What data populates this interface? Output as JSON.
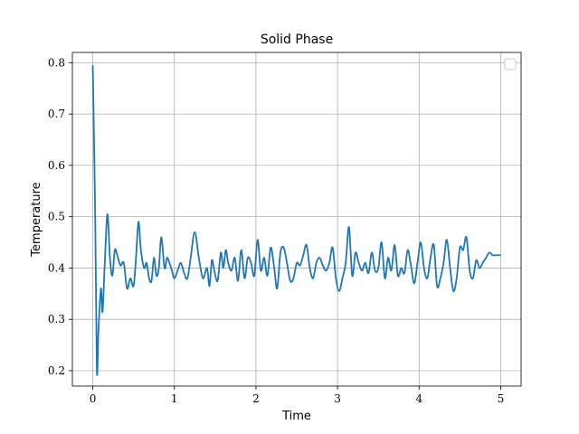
{
  "chart_data": {
    "type": "line",
    "title": "Solid Phase",
    "xlabel": "Time",
    "ylabel": "Temperature",
    "xlim": [
      -0.25,
      5.25
    ],
    "ylim": [
      0.17,
      0.82
    ],
    "xticks": [
      0,
      1,
      2,
      3,
      4,
      5
    ],
    "yticks": [
      0.2,
      0.3,
      0.4,
      0.5,
      0.6,
      0.7,
      0.8
    ],
    "grid": true,
    "legend": "top-right (empty)",
    "series": [
      {
        "name": "",
        "color": "#1f77b4",
        "x": [
          0.0,
          0.03,
          0.05,
          0.07,
          0.1,
          0.12,
          0.15,
          0.18,
          0.21,
          0.24,
          0.27,
          0.3,
          0.34,
          0.38,
          0.42,
          0.46,
          0.5,
          0.53,
          0.56,
          0.59,
          0.63,
          0.66,
          0.69,
          0.72,
          0.75,
          0.78,
          0.81,
          0.84,
          0.88,
          0.91,
          0.94,
          0.97,
          1.0,
          1.04,
          1.08,
          1.12,
          1.16,
          1.2,
          1.25,
          1.3,
          1.35,
          1.4,
          1.43,
          1.46,
          1.49,
          1.53,
          1.57,
          1.6,
          1.63,
          1.66,
          1.7,
          1.74,
          1.78,
          1.82,
          1.86,
          1.9,
          1.94,
          1.98,
          2.02,
          2.06,
          2.1,
          2.14,
          2.18,
          2.22,
          2.26,
          2.3,
          2.34,
          2.38,
          2.42,
          2.46,
          2.5,
          2.54,
          2.58,
          2.62,
          2.66,
          2.7,
          2.74,
          2.78,
          2.82,
          2.86,
          2.9,
          2.94,
          2.98,
          3.02,
          3.06,
          3.1,
          3.14,
          3.18,
          3.22,
          3.26,
          3.3,
          3.34,
          3.38,
          3.42,
          3.46,
          3.5,
          3.54,
          3.58,
          3.62,
          3.66,
          3.7,
          3.74,
          3.78,
          3.82,
          3.86,
          3.9,
          3.94,
          3.98,
          4.02,
          4.06,
          4.1,
          4.14,
          4.18,
          4.22,
          4.26,
          4.3,
          4.34,
          4.38,
          4.42,
          4.46,
          4.5,
          4.54,
          4.58,
          4.62,
          4.66,
          4.7,
          4.74,
          4.78,
          4.82,
          4.86,
          4.9,
          4.94,
          4.98,
          5.0
        ],
        "y": [
          0.795,
          0.5,
          0.2,
          0.28,
          0.36,
          0.315,
          0.42,
          0.505,
          0.42,
          0.385,
          0.435,
          0.425,
          0.405,
          0.41,
          0.36,
          0.38,
          0.365,
          0.42,
          0.49,
          0.435,
          0.4,
          0.41,
          0.38,
          0.375,
          0.42,
          0.385,
          0.4,
          0.46,
          0.4,
          0.42,
          0.41,
          0.395,
          0.38,
          0.395,
          0.41,
          0.39,
          0.38,
          0.42,
          0.47,
          0.42,
          0.38,
          0.4,
          0.365,
          0.415,
          0.395,
          0.375,
          0.43,
          0.4,
          0.435,
          0.41,
          0.395,
          0.42,
          0.375,
          0.435,
          0.38,
          0.42,
          0.41,
          0.385,
          0.455,
          0.395,
          0.42,
          0.385,
          0.44,
          0.405,
          0.36,
          0.43,
          0.44,
          0.41,
          0.375,
          0.38,
          0.41,
          0.405,
          0.425,
          0.445,
          0.4,
          0.38,
          0.41,
          0.42,
          0.405,
          0.395,
          0.41,
          0.44,
          0.38,
          0.355,
          0.38,
          0.41,
          0.48,
          0.385,
          0.43,
          0.41,
          0.395,
          0.41,
          0.39,
          0.43,
          0.395,
          0.4,
          0.45,
          0.38,
          0.42,
          0.395,
          0.445,
          0.385,
          0.4,
          0.39,
          0.435,
          0.405,
          0.37,
          0.41,
          0.45,
          0.4,
          0.38,
          0.42,
          0.445,
          0.365,
          0.38,
          0.41,
          0.455,
          0.4,
          0.355,
          0.38,
          0.44,
          0.435,
          0.46,
          0.395,
          0.38,
          0.415,
          0.4,
          0.41,
          0.42,
          0.43,
          0.425,
          0.425,
          0.425,
          0.425
        ]
      }
    ]
  }
}
